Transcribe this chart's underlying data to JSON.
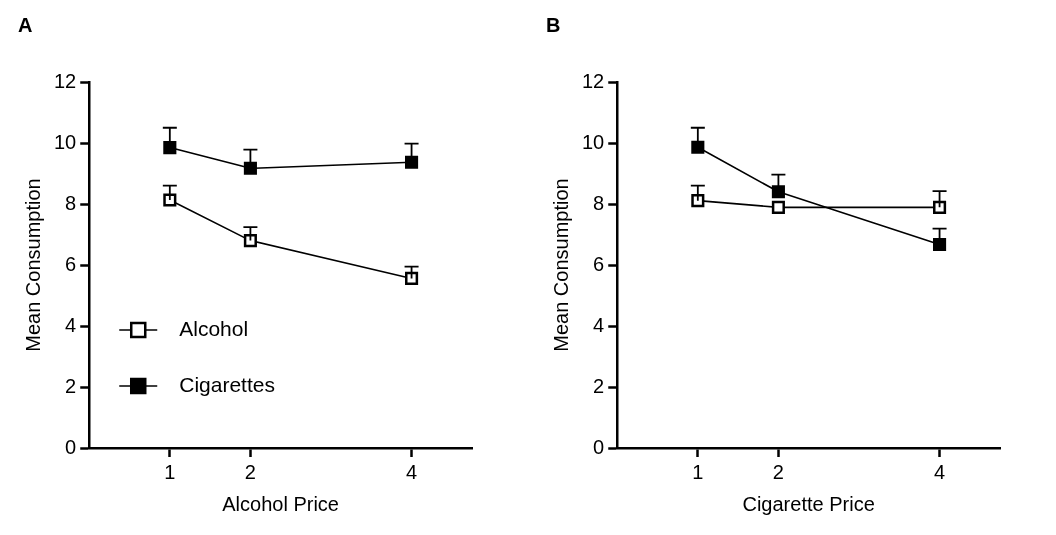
{
  "chart_data": [
    {
      "type": "line",
      "title": "A",
      "xlabel": "Alcohol Price",
      "ylabel": "Mean Consumption",
      "x": [
        1,
        2,
        4
      ],
      "series": [
        {
          "name": "Alcohol",
          "color": "#000000",
          "values": [
            8.13,
            6.8,
            5.56
          ],
          "errors": [
            [
              8.13,
              8.6
            ],
            [
              6.8,
              7.24
            ],
            [
              5.56,
              5.95
            ]
          ]
        },
        {
          "name": "Cigarettes",
          "color": "#000000",
          "values": [
            9.85,
            9.17,
            9.37
          ],
          "errors": [
            [
              9.85,
              10.5
            ],
            [
              9.17,
              9.78
            ],
            [
              9.37,
              9.98
            ]
          ]
        }
      ],
      "xlim": [
        0,
        4.75
      ],
      "xticks": [
        1,
        2,
        4
      ],
      "ylim": [
        0,
        12
      ],
      "yticks": [
        0,
        2,
        4,
        6,
        8,
        10,
        12
      ],
      "grid": false,
      "legend": "bottom left",
      "marker": "square",
      "line_style": "solid"
    },
    {
      "type": "line",
      "title": "B",
      "xlabel": "Cigarette Price",
      "ylabel": "Mean Consumption",
      "x": [
        1,
        2,
        4
      ],
      "series": [
        {
          "color": "#000000",
          "values": [
            8.11,
            7.89,
            7.89
          ],
          "errors": [
            [
              8.11,
              8.6
            ],
            null,
            [
              7.89,
              8.42
            ]
          ]
        },
        {
          "color": "#000000",
          "values": [
            9.86,
            8.4,
            6.67
          ],
          "errors": [
            [
              9.86,
              10.5
            ],
            [
              8.4,
              8.96
            ],
            [
              6.67,
              7.19
            ]
          ]
        }
      ],
      "xlim": [
        0,
        4.75
      ],
      "xticks": [
        1,
        2,
        4
      ],
      "ylim": [
        0,
        12
      ],
      "yticks": [
        0,
        2,
        4,
        6,
        8,
        10,
        12
      ],
      "grid": false,
      "legend": false,
      "marker": "square",
      "line_style": "solid"
    }
  ]
}
